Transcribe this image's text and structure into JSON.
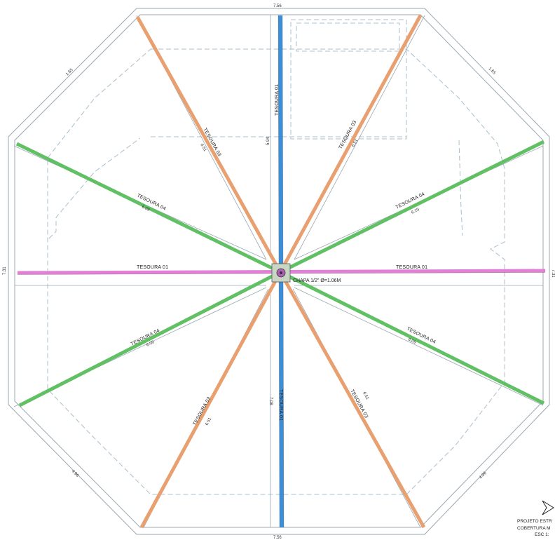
{
  "drawing": {
    "colors": {
      "tesoura_01_horizontal": "#e27fd6",
      "tesoura_01_vertical": "#3b8fd8",
      "tesoura_03": "#e8a070",
      "tesoura_04": "#62c064",
      "outline": "#9aa9b2",
      "dashed": "#a9bfcc"
    },
    "trusses": [
      {
        "id": "t01-left",
        "label": "TESOURA 01",
        "length": "",
        "color_key": "tesoura_01_horizontal"
      },
      {
        "id": "t01-right",
        "label": "TESOURA 01",
        "length": "",
        "color_key": "tesoura_01_horizontal"
      },
      {
        "id": "t01-top",
        "label": "TESOURA 01",
        "length": "5.94",
        "color_key": "tesoura_01_vertical"
      },
      {
        "id": "t01-bottom",
        "label": "TESOURA 01",
        "length": "7.08",
        "color_key": "tesoura_01_vertical"
      },
      {
        "id": "t03-top-left",
        "label": "TESOURA 03",
        "length": "6.51",
        "color_key": "tesoura_03"
      },
      {
        "id": "t03-top-right",
        "label": "TESOURA 03",
        "length": "6.51",
        "color_key": "tesoura_03"
      },
      {
        "id": "t03-bottom-left",
        "label": "TESOURA 03",
        "length": "6.51",
        "color_key": "tesoura_03"
      },
      {
        "id": "t03-bottom-right",
        "label": "TESOURA 03",
        "length": "6.51",
        "color_key": "tesoura_03"
      },
      {
        "id": "t04-top-left",
        "label": "TESOURA 04",
        "length": "6.09",
        "color_key": "tesoura_04"
      },
      {
        "id": "t04-top-right",
        "label": "TESOURA 04",
        "length": "6.19",
        "color_key": "tesoura_04"
      },
      {
        "id": "t04-bottom-left",
        "label": "TESOURA 04",
        "length": "6.09",
        "color_key": "tesoura_04"
      },
      {
        "id": "t04-bottom-right",
        "label": "TESOURA 04",
        "length": "6.09",
        "color_key": "tesoura_04"
      }
    ],
    "center_note": "CHAPA 1/2\" Ø=1.06M",
    "dimensions": {
      "top_edge": "7.56",
      "bottom_edge": "7.56",
      "left_edge": "7.31",
      "right_edge": "7.31",
      "top_left_diag": "1.65",
      "top_right_diag": "1.65",
      "bottom_left_diag": "4.96",
      "bottom_right_diag": "4.96"
    },
    "title_block": {
      "line1": "PROJETO ESTR",
      "line2": "COBERTURA M",
      "line3": "ESC 1:"
    }
  }
}
